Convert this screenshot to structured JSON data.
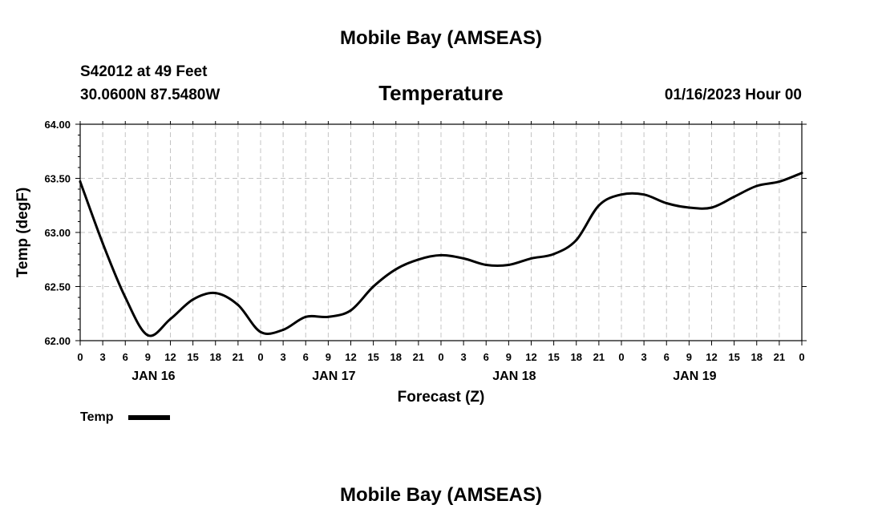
{
  "header": {
    "title": "Mobile Bay (AMSEAS)",
    "station": "S42012 at 49 Feet",
    "location": "30.0600N  87.5480W",
    "parameter": "Temperature",
    "datetime": "01/16/2023 Hour 00",
    "footer_title": "Mobile Bay (AMSEAS)"
  },
  "chart_data": {
    "type": "line",
    "xlabel": "Forecast (Z)",
    "ylabel": "Temp (degF)",
    "ylim": [
      62.0,
      64.0
    ],
    "yticks": [
      "62.00",
      "62.50",
      "63.00",
      "63.50",
      "64.00"
    ],
    "xlim": [
      0,
      96
    ],
    "xtick_step_hours": 3,
    "xtick_labels": [
      "0",
      "3",
      "6",
      "9",
      "12",
      "15",
      "18",
      "21",
      "0",
      "3",
      "6",
      "9",
      "12",
      "15",
      "18",
      "21",
      "0",
      "3",
      "6",
      "9",
      "12",
      "15",
      "18",
      "21",
      "0",
      "3",
      "6",
      "9",
      "12",
      "15",
      "18",
      "21",
      "0"
    ],
    "day_labels": [
      {
        "label": "JAN 16",
        "hour": 9.75
      },
      {
        "label": "JAN 17",
        "hour": 33.75
      },
      {
        "label": "JAN 18",
        "hour": 57.75
      },
      {
        "label": "JAN 19",
        "hour": 81.75
      }
    ],
    "grid": true,
    "legend_position": "bottom-left",
    "series": [
      {
        "name": "Temp",
        "x": [
          0,
          3,
          6,
          9,
          12,
          15,
          18,
          21,
          24,
          27,
          30,
          33,
          36,
          39,
          42,
          45,
          48,
          51,
          54,
          57,
          60,
          63,
          66,
          69,
          72,
          75,
          78,
          81,
          84,
          87,
          90,
          93,
          96
        ],
        "y": [
          63.47,
          62.9,
          62.4,
          62.05,
          62.2,
          62.38,
          62.44,
          62.33,
          62.08,
          62.1,
          62.22,
          62.22,
          62.28,
          62.5,
          62.66,
          62.75,
          62.79,
          62.76,
          62.7,
          62.7,
          62.76,
          62.8,
          62.93,
          63.25,
          63.35,
          63.35,
          63.27,
          63.23,
          63.23,
          63.33,
          63.43,
          63.47,
          63.55
        ]
      }
    ]
  },
  "legend": {
    "label": "Temp"
  }
}
